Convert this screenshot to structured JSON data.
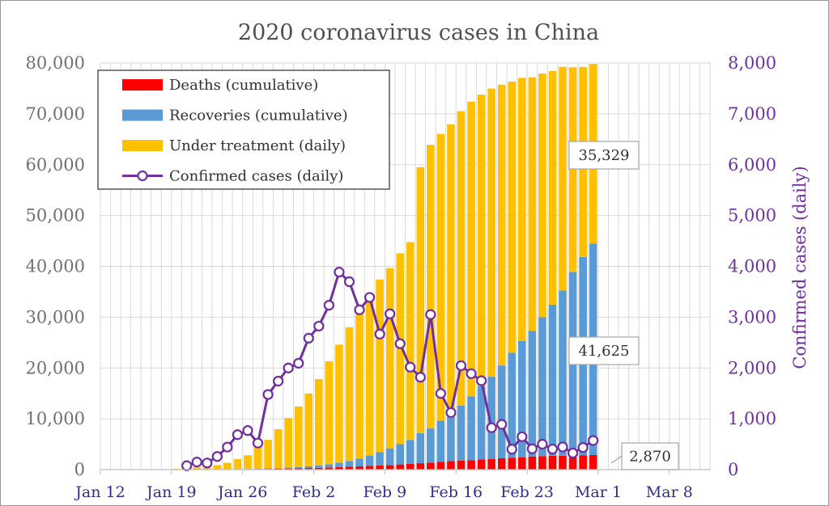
{
  "chart_data": {
    "type": "bar",
    "title": "2020 coronavirus cases in China",
    "xlabel": "",
    "ylabel": "",
    "y2label": "Confirmed cases (daily)",
    "ylim": [
      0,
      80000
    ],
    "y2lim": [
      0,
      8000
    ],
    "y_ticks": [
      "0",
      "10,000",
      "20,000",
      "30,000",
      "40,000",
      "50,000",
      "60,000",
      "70,000",
      "80,000"
    ],
    "y2_ticks": [
      "0",
      "1,000",
      "2,000",
      "3,000",
      "4,000",
      "5,000",
      "6,000",
      "7,000",
      "8,000"
    ],
    "x_ticks": [
      {
        "day": 0,
        "label": "Jan 12"
      },
      {
        "day": 7,
        "label": "Jan 19"
      },
      {
        "day": 14,
        "label": "Jan 26"
      },
      {
        "day": 21,
        "label": "Feb 2"
      },
      {
        "day": 28,
        "label": "Feb 9"
      },
      {
        "day": 35,
        "label": "Feb 16"
      },
      {
        "day": 42,
        "label": "Feb 23"
      },
      {
        "day": 49,
        "label": "Mar 1"
      },
      {
        "day": 56,
        "label": "Mar 8"
      }
    ],
    "legend_position": "top-left",
    "series": [
      {
        "name": "Deaths (cumulative)",
        "kind": "stacked-bar",
        "color": "#ff0000",
        "values": [
          1,
          1,
          1,
          1,
          1,
          1,
          2,
          3,
          6,
          9,
          17,
          25,
          41,
          56,
          80,
          106,
          132,
          170,
          213,
          259,
          304,
          361,
          425,
          490,
          563,
          636,
          722,
          811,
          908,
          1016,
          1113,
          1259,
          1380,
          1523,
          1665,
          1770,
          1868,
          2004,
          2118,
          2236,
          2345,
          2442,
          2592,
          2663,
          2715,
          2744,
          2788,
          2835,
          2870
        ]
      },
      {
        "name": "Recoveries (cumulative)",
        "kind": "stacked-bar",
        "color": "#5b9bd5",
        "values": [
          0,
          2,
          3,
          4,
          5,
          6,
          10,
          15,
          20,
          25,
          30,
          34,
          38,
          49,
          51,
          60,
          103,
          124,
          171,
          243,
          328,
          475,
          632,
          892,
          1153,
          1540,
          2050,
          2649,
          3281,
          3996,
          4740,
          5911,
          6723,
          8096,
          9419,
          10844,
          12552,
          14376,
          16155,
          18264,
          20659,
          22888,
          24734,
          27323,
          29745,
          32495,
          36117,
          39002,
          41625
        ]
      },
      {
        "name": "Under treatment (daily)",
        "kind": "stacked-bar",
        "color": "#ffc000",
        "values": [
          40,
          39,
          38,
          37,
          36,
          35,
          50,
          150,
          280,
          390,
          560,
          830,
          1260,
          1960,
          2680,
          4450,
          5620,
          7650,
          9770,
          11920,
          14340,
          16980,
          20250,
          23210,
          26290,
          28900,
          31230,
          33950,
          35480,
          37550,
          38910,
          52340,
          55820,
          56440,
          56850,
          57930,
          58000,
          57420,
          56700,
          55250,
          53330,
          51750,
          49880,
          47950,
          45990,
          44000,
          40250,
          37400,
          35329
        ]
      },
      {
        "name": "Confirmed cases (daily)",
        "kind": "line",
        "color": "#7030a0",
        "axis": "right",
        "start_day": 8,
        "values": [
          77,
          149,
          131,
          259,
          444,
          688,
          769,
          523,
          1478,
          1742,
          2000,
          2094,
          2587,
          2824,
          3235,
          3887,
          3698,
          3145,
          3389,
          2667,
          3066,
          2478,
          2016,
          1818,
          3052,
          1499,
          1122,
          2046,
          1888,
          1749,
          824,
          891,
          401,
          647,
          410,
          501,
          405,
          446,
          327,
          435,
          573
        ]
      }
    ],
    "annotations": [
      "35,329",
      "41,625",
      "2,870"
    ]
  }
}
